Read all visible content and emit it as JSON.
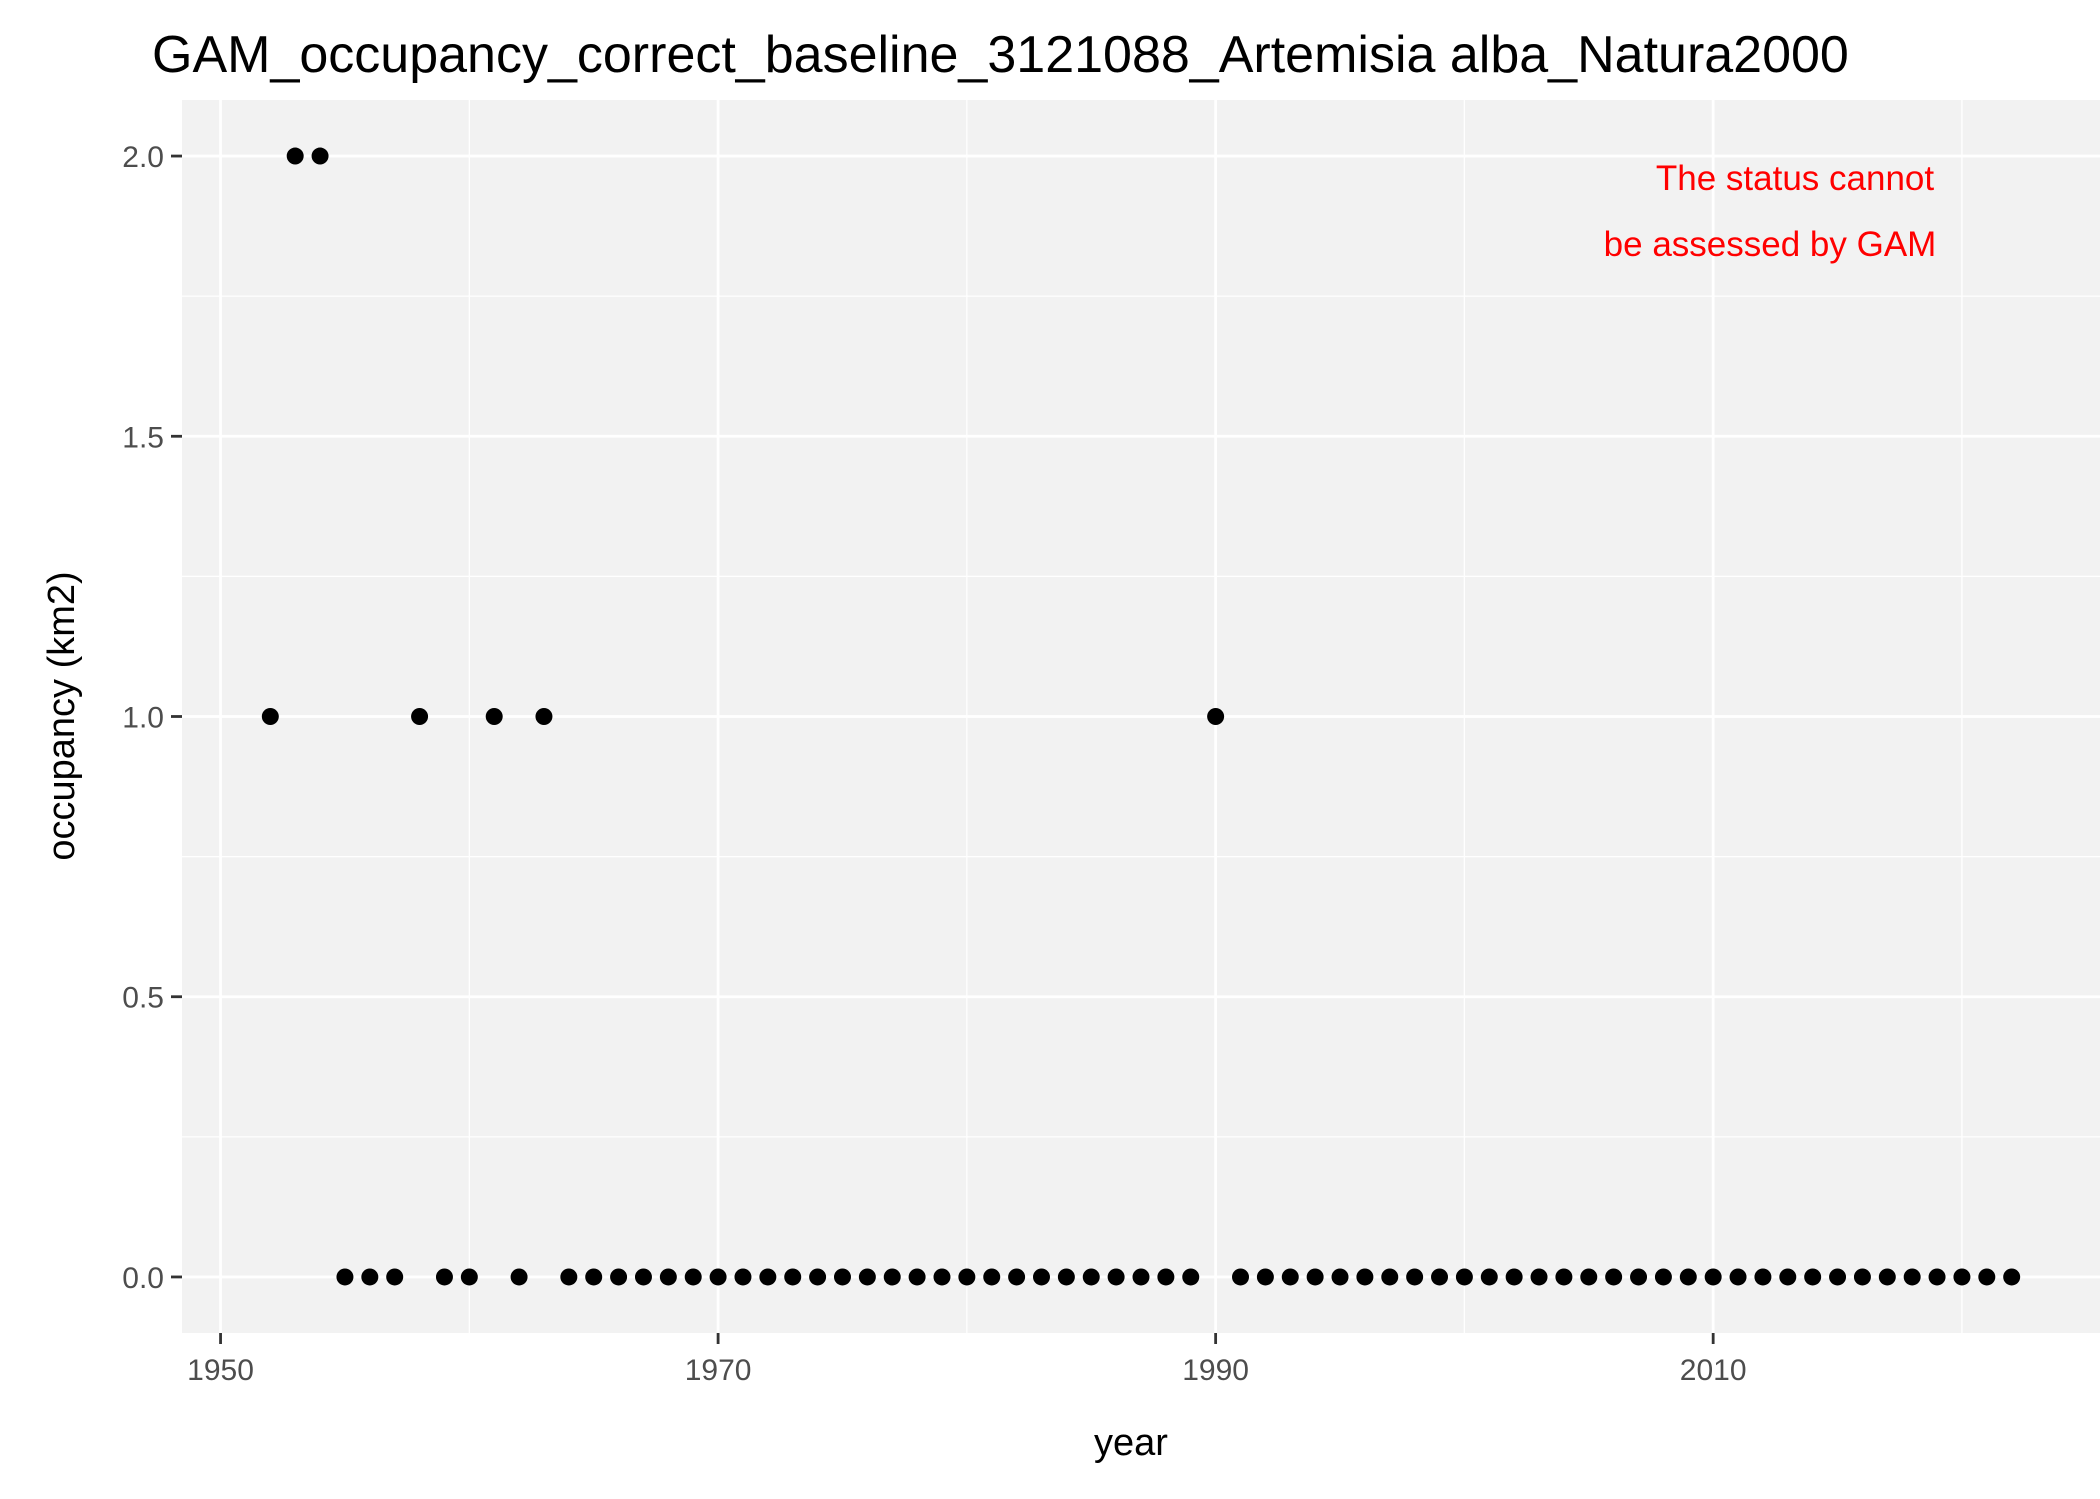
{
  "chart_data": {
    "type": "scatter",
    "title": "GAM_occupancy_correct_baseline_3121088_Artemisia alba_Natura2000",
    "xlabel": "year",
    "ylabel": "occupancy (km2)",
    "xlim": [
      1948.45,
      2025.55
    ],
    "ylim": [
      -0.1,
      2.1
    ],
    "x_ticks": [
      1950,
      1970,
      1990,
      2010
    ],
    "x_tick_labels": [
      "1950",
      "1970",
      "1990",
      "2010"
    ],
    "y_ticks": [
      0,
      0.5,
      1,
      1.5,
      2
    ],
    "y_tick_labels": [
      "0.0",
      "0.5",
      "1.0",
      "1.5",
      "2.0"
    ],
    "x_minor_ticks": [
      1960,
      1980,
      2000,
      2020
    ],
    "y_minor_ticks": [
      0.25,
      0.75,
      1.25,
      1.75
    ],
    "grid": true,
    "colors": {
      "panel": "#f2f2f2",
      "grid": "#ffffff",
      "point": "#000000",
      "annotation": "#ff0000"
    },
    "annotation": [
      "The status cannot",
      "be assessed by GAM"
    ],
    "series": [
      {
        "points": [
          [
            1952,
            1
          ],
          [
            1953,
            2
          ],
          [
            1954,
            2
          ],
          [
            1955,
            0
          ],
          [
            1956,
            0
          ],
          [
            1957,
            0
          ],
          [
            1958,
            1
          ],
          [
            1959,
            0
          ],
          [
            1960,
            0
          ],
          [
            1961,
            1
          ],
          [
            1962,
            0
          ],
          [
            1963,
            1
          ],
          [
            1964,
            0
          ],
          [
            1965,
            0
          ],
          [
            1966,
            0
          ],
          [
            1967,
            0
          ],
          [
            1968,
            0
          ],
          [
            1969,
            0
          ],
          [
            1970,
            0
          ],
          [
            1971,
            0
          ],
          [
            1972,
            0
          ],
          [
            1973,
            0
          ],
          [
            1974,
            0
          ],
          [
            1975,
            0
          ],
          [
            1976,
            0
          ],
          [
            1977,
            0
          ],
          [
            1978,
            0
          ],
          [
            1979,
            0
          ],
          [
            1980,
            0
          ],
          [
            1981,
            0
          ],
          [
            1982,
            0
          ],
          [
            1983,
            0
          ],
          [
            1984,
            0
          ],
          [
            1985,
            0
          ],
          [
            1986,
            0
          ],
          [
            1987,
            0
          ],
          [
            1988,
            0
          ],
          [
            1989,
            0
          ],
          [
            1990,
            1
          ],
          [
            1991,
            0
          ],
          [
            1992,
            0
          ],
          [
            1993,
            0
          ],
          [
            1994,
            0
          ],
          [
            1995,
            0
          ],
          [
            1996,
            0
          ],
          [
            1997,
            0
          ],
          [
            1998,
            0
          ],
          [
            1999,
            0
          ],
          [
            2000,
            0
          ],
          [
            2001,
            0
          ],
          [
            2002,
            0
          ],
          [
            2003,
            0
          ],
          [
            2004,
            0
          ],
          [
            2005,
            0
          ],
          [
            2006,
            0
          ],
          [
            2007,
            0
          ],
          [
            2008,
            0
          ],
          [
            2009,
            0
          ],
          [
            2010,
            0
          ],
          [
            2011,
            0
          ],
          [
            2012,
            0
          ],
          [
            2013,
            0
          ],
          [
            2014,
            0
          ],
          [
            2015,
            0
          ],
          [
            2016,
            0
          ],
          [
            2017,
            0
          ],
          [
            2018,
            0
          ],
          [
            2019,
            0
          ],
          [
            2020,
            0
          ],
          [
            2021,
            0
          ],
          [
            2022,
            0
          ]
        ]
      }
    ]
  }
}
